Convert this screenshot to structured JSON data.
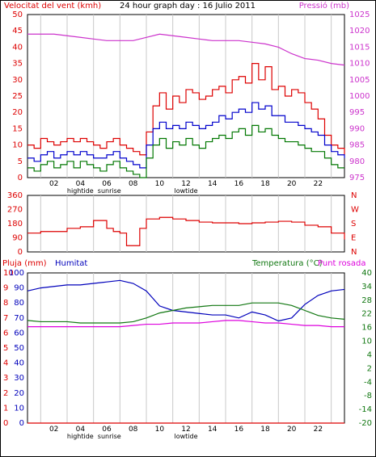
{
  "colors": {
    "wind_speed": "#dd0000",
    "wind_avg": "#0000cc",
    "wind_min": "#007700",
    "pressure": "#cc33cc",
    "humidity": "#0000bb",
    "temperature": "#117711",
    "dewpoint": "#dd00dd",
    "rain": "#dd0000",
    "grid": "#c8c8c8",
    "frame": "#000000"
  },
  "chart_data": [
    {
      "type": "line",
      "title": "24 hour graph day : 16 Julio 2011",
      "ylabel_left": "Velocitat del vent (kmh)",
      "ylabel_right": "Pressió (mb)",
      "ylim_left": [
        0,
        50
      ],
      "yticks_left": [
        "0",
        "5",
        "10",
        "15",
        "20",
        "25",
        "30",
        "35",
        "40",
        "45",
        "50"
      ],
      "ylim_right": [
        975,
        1025
      ],
      "yticks_right": [
        "975",
        "980",
        "985",
        "990",
        "995",
        "1000",
        "1005",
        "1010",
        "1015",
        "1020",
        "1025"
      ],
      "xticks": [
        "02",
        "04",
        "06",
        "08",
        "10",
        "12",
        "14",
        "16",
        "18",
        "20",
        "22"
      ],
      "xlim": [
        0,
        24
      ],
      "annotations": [
        {
          "text": "hightide",
          "x": 4
        },
        {
          "text": "sunrise",
          "x": 6.2
        },
        {
          "text": "lowtide",
          "x": 12
        }
      ],
      "series": [
        {
          "key": "wind_gust",
          "color_key": "wind_speed",
          "x": [
            0,
            0.5,
            1,
            1.5,
            2,
            2.5,
            3,
            3.5,
            4,
            4.5,
            5,
            5.5,
            6,
            6.5,
            7,
            7.5,
            8,
            8.5,
            9,
            9.5,
            10,
            10.5,
            11,
            11.5,
            12,
            12.5,
            13,
            13.5,
            14,
            14.5,
            15,
            15.5,
            16,
            16.5,
            17,
            17.5,
            18,
            18.5,
            19,
            19.5,
            20,
            20.5,
            21,
            21.5,
            22,
            22.5,
            23,
            23.5,
            24
          ],
          "values": [
            10,
            9,
            12,
            11,
            10,
            11,
            12,
            11,
            12,
            11,
            10,
            9,
            11,
            12,
            10,
            9,
            8,
            7,
            14,
            22,
            26,
            21,
            25,
            23,
            27,
            26,
            24,
            25,
            27,
            28,
            26,
            30,
            31,
            29,
            35,
            30,
            34,
            27,
            28,
            25,
            27,
            26,
            23,
            21,
            18,
            13,
            10,
            9,
            7
          ]
        },
        {
          "key": "wind_avg",
          "color_key": "wind_avg",
          "x": [
            0,
            0.5,
            1,
            1.5,
            2,
            2.5,
            3,
            3.5,
            4,
            4.5,
            5,
            5.5,
            6,
            6.5,
            7,
            7.5,
            8,
            8.5,
            9,
            9.5,
            10,
            10.5,
            11,
            11.5,
            12,
            12.5,
            13,
            13.5,
            14,
            14.5,
            15,
            15.5,
            16,
            16.5,
            17,
            17.5,
            18,
            18.5,
            19,
            19.5,
            20,
            20.5,
            21,
            21.5,
            22,
            22.5,
            23,
            23.5,
            24
          ],
          "values": [
            6,
            5,
            7,
            8,
            6,
            7,
            8,
            7,
            8,
            7,
            6,
            6,
            7,
            8,
            6,
            5,
            4,
            3,
            10,
            15,
            17,
            15,
            16,
            15,
            17,
            16,
            15,
            16,
            17,
            19,
            18,
            20,
            21,
            20,
            23,
            21,
            22,
            19,
            19,
            17,
            17,
            16,
            15,
            14,
            13,
            10,
            8,
            7,
            6
          ]
        },
        {
          "key": "wind_min",
          "color_key": "wind_min",
          "x": [
            0,
            0.5,
            1,
            1.5,
            2,
            2.5,
            3,
            3.5,
            4,
            4.5,
            5,
            5.5,
            6,
            6.5,
            7,
            7.5,
            8,
            8.5,
            9,
            9.5,
            10,
            10.5,
            11,
            11.5,
            12,
            12.5,
            13,
            13.5,
            14,
            14.5,
            15,
            15.5,
            16,
            16.5,
            17,
            17.5,
            18,
            18.5,
            19,
            19.5,
            20,
            20.5,
            21,
            21.5,
            22,
            22.5,
            23,
            23.5,
            24
          ],
          "values": [
            3,
            2,
            4,
            5,
            3,
            4,
            5,
            3,
            5,
            4,
            3,
            2,
            4,
            5,
            3,
            2,
            1,
            0,
            6,
            10,
            12,
            9,
            11,
            10,
            12,
            10,
            9,
            11,
            12,
            13,
            12,
            14,
            15,
            13,
            16,
            14,
            15,
            13,
            12,
            11,
            11,
            10,
            9,
            8,
            8,
            6,
            4,
            3,
            3
          ]
        },
        {
          "key": "pressure",
          "color_key": "pressure",
          "axis": "right",
          "x": [
            0,
            1,
            2,
            3,
            4,
            5,
            6,
            7,
            8,
            9,
            10,
            11,
            12,
            13,
            14,
            15,
            16,
            17,
            18,
            19,
            20,
            21,
            22,
            23,
            24
          ],
          "values": [
            1019,
            1019,
            1019,
            1018.5,
            1018,
            1017.5,
            1017,
            1017,
            1017,
            1018,
            1019,
            1018.5,
            1018,
            1017.5,
            1017,
            1017,
            1017,
            1016.5,
            1016,
            1015,
            1013,
            1011.5,
            1011,
            1010,
            1009.5
          ]
        }
      ]
    },
    {
      "type": "line",
      "ylabel_left": "",
      "ylim_left": [
        0,
        360
      ],
      "yticks_left": [
        "0",
        "90",
        "180",
        "270",
        "360"
      ],
      "compass_labels": [
        "N",
        "W",
        "S",
        "E",
        "N"
      ],
      "xlim": [
        0,
        24
      ],
      "series": [
        {
          "key": "wind_dir",
          "color_key": "wind_speed",
          "x": [
            0,
            1,
            2,
            3,
            4,
            5,
            6,
            6.5,
            7,
            7.5,
            8,
            8.5,
            9,
            10,
            11,
            12,
            13,
            14,
            15,
            16,
            17,
            18,
            19,
            20,
            21,
            22,
            23,
            24
          ],
          "values": [
            120,
            130,
            130,
            150,
            160,
            200,
            150,
            130,
            120,
            40,
            40,
            150,
            210,
            220,
            210,
            200,
            190,
            185,
            185,
            180,
            185,
            190,
            195,
            190,
            170,
            160,
            120,
            80
          ]
        }
      ]
    },
    {
      "type": "line",
      "ylabel_left": "Pluja (mm)",
      "ylabel_left2": "Humitat",
      "ylabel_right": "Temperatura (°C)",
      "ylabel_right2": "Punt rosada",
      "ylim_left": [
        0,
        10
      ],
      "yticks_left": [
        "0",
        "1",
        "2",
        "3",
        "4",
        "5",
        "6",
        "7",
        "8",
        "9",
        "10"
      ],
      "ylim_left2": [
        0,
        100
      ],
      "yticks_left2": [
        "0",
        "10",
        "20",
        "30",
        "40",
        "50",
        "60",
        "70",
        "80",
        "90",
        "100"
      ],
      "ylim_right": [
        -20,
        40
      ],
      "yticks_right": [
        "-20",
        "-14",
        "-8",
        "-4",
        "2",
        "4",
        "10",
        "16",
        "22",
        "28",
        "34",
        "40"
      ],
      "xticks": [
        "02",
        "04",
        "06",
        "08",
        "10",
        "12",
        "14",
        "16",
        "18",
        "20",
        "22"
      ],
      "xlim": [
        0,
        24
      ],
      "annotations": [
        {
          "text": "hightide",
          "x": 4
        },
        {
          "text": "sunrise",
          "x": 6.2
        },
        {
          "text": "lowtide",
          "x": 12
        }
      ],
      "series": [
        {
          "key": "rain",
          "color_key": "rain",
          "axis": "left",
          "x": [
            0,
            24
          ],
          "values": [
            0,
            0
          ]
        },
        {
          "key": "humidity",
          "color_key": "humidity",
          "axis": "left2",
          "x": [
            0,
            1,
            2,
            3,
            4,
            5,
            6,
            7,
            8,
            9,
            10,
            11,
            12,
            13,
            14,
            15,
            16,
            17,
            18,
            19,
            20,
            21,
            22,
            23,
            24
          ],
          "values": [
            88,
            90,
            91,
            92,
            92,
            93,
            94,
            95,
            93,
            88,
            78,
            75,
            74,
            73,
            72,
            72,
            70,
            74,
            72,
            68,
            70,
            79,
            85,
            88,
            89
          ]
        },
        {
          "key": "temperature",
          "color_key": "temperature",
          "axis": "right",
          "x": [
            0,
            1,
            2,
            3,
            4,
            5,
            6,
            7,
            8,
            9,
            10,
            11,
            12,
            13,
            14,
            15,
            16,
            17,
            18,
            19,
            20,
            21,
            22,
            23,
            24
          ],
          "values": [
            21,
            20.5,
            20.5,
            20.5,
            20,
            20,
            20,
            20,
            20.5,
            22,
            24,
            25,
            26,
            26.5,
            27,
            27,
            27,
            28,
            28,
            28,
            27,
            25,
            23,
            22,
            21.5
          ]
        },
        {
          "key": "dewpoint",
          "color_key": "dewpoint",
          "axis": "right",
          "x": [
            0,
            1,
            2,
            3,
            4,
            5,
            6,
            7,
            8,
            9,
            10,
            11,
            12,
            13,
            14,
            15,
            16,
            17,
            18,
            19,
            20,
            21,
            22,
            23,
            24
          ],
          "values": [
            18.5,
            18.5,
            18.5,
            18.5,
            18.5,
            18.5,
            18.5,
            18.5,
            19,
            19.5,
            19.5,
            20,
            20,
            20,
            20.5,
            21,
            21,
            20.5,
            20,
            20,
            19.5,
            19,
            19,
            18.5,
            18.5
          ]
        }
      ]
    }
  ]
}
